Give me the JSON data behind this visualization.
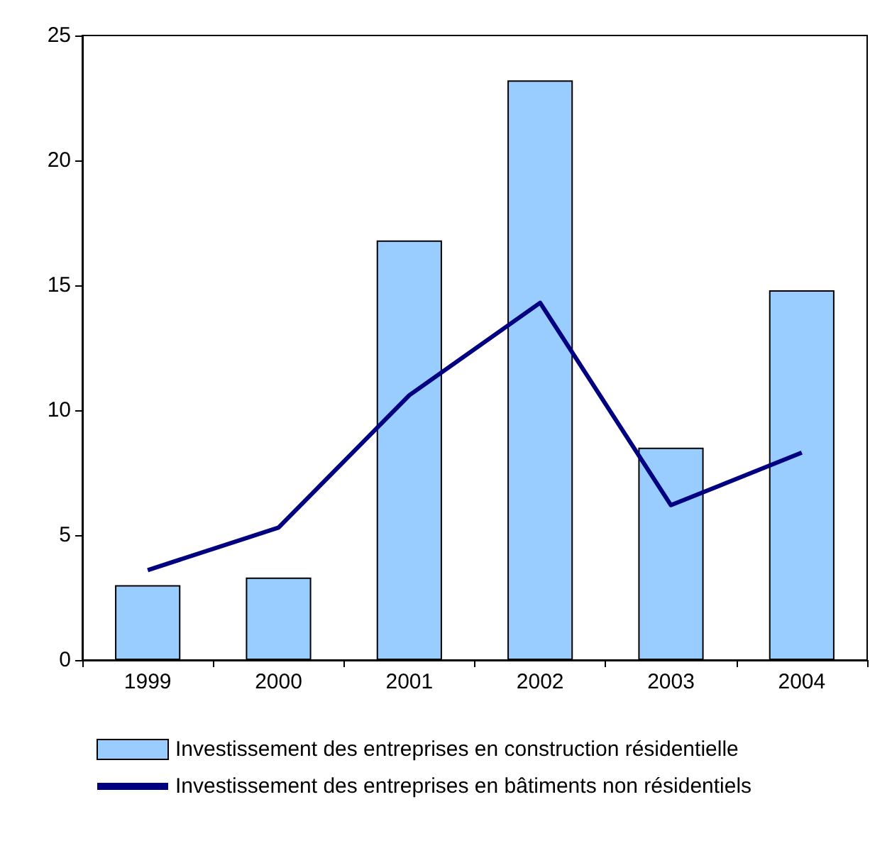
{
  "chart_data": {
    "type": "bar",
    "categories": [
      "1999",
      "2000",
      "2001",
      "2002",
      "2003",
      "2004"
    ],
    "series": [
      {
        "name": "Investissement des entreprises en construction résidentielle",
        "color": "#99ccff",
        "values": [
          3.0,
          3.3,
          16.8,
          23.2,
          8.5,
          14.8
        ]
      },
      {
        "name": "Investissement des entreprises en bâtiments non résidentiels",
        "type": "line",
        "color": "#000080",
        "values": [
          3.6,
          5.3,
          10.6,
          14.3,
          6.2,
          8.3
        ]
      }
    ],
    "ylim": [
      0,
      25
    ],
    "yticks": [
      0,
      5,
      10,
      15,
      20,
      25
    ],
    "grid": false,
    "legend": "bottom",
    "marker": "none"
  }
}
